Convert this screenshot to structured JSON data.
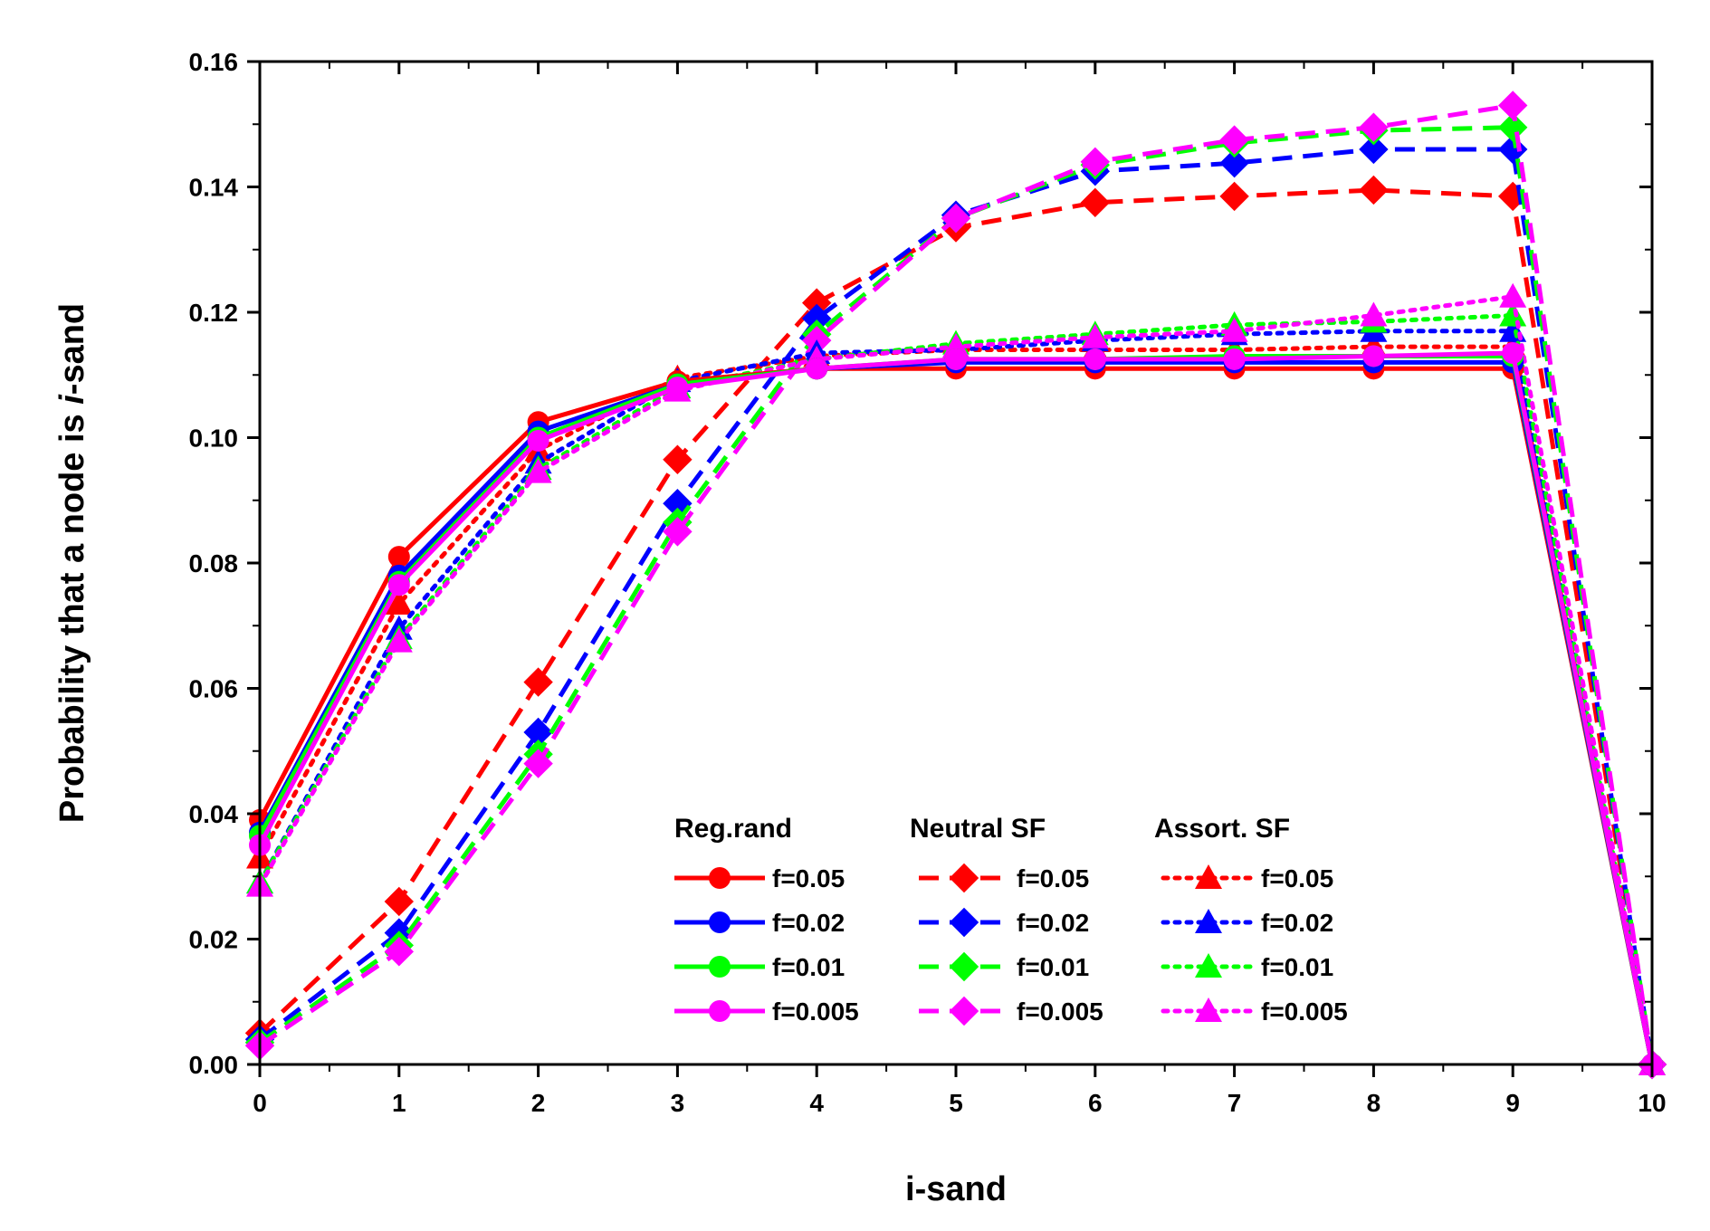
{
  "chart_data": {
    "type": "line",
    "title": "",
    "xlabel": "i-sand",
    "ylabel_prefix": "Probability that a node is ",
    "ylabel_italic": "i",
    "ylabel_suffix": "-sand",
    "xlim": [
      0,
      10
    ],
    "ylim": [
      0,
      0.16
    ],
    "xticks": [
      0,
      1,
      2,
      3,
      4,
      5,
      6,
      7,
      8,
      9,
      10
    ],
    "yticks": [
      0.0,
      0.02,
      0.04,
      0.06,
      0.08,
      0.1,
      0.12,
      0.14,
      0.16
    ],
    "grid": false,
    "legend_location": "bottom-center",
    "legend_groups": [
      "Reg.rand",
      "Neutral SF",
      "Assort. SF"
    ],
    "x": [
      0,
      1,
      2,
      3,
      4,
      5,
      6,
      7,
      8,
      9,
      10
    ],
    "series": [
      {
        "name": "f=0.05",
        "group": "Reg.rand",
        "color": "#ff0000",
        "style": "solid",
        "marker": "circle",
        "values": [
          0.039,
          0.081,
          0.1025,
          0.109,
          0.111,
          0.111,
          0.111,
          0.111,
          0.111,
          0.111,
          0.0
        ]
      },
      {
        "name": "f=0.02",
        "group": "Reg.rand",
        "color": "#0000ff",
        "style": "solid",
        "marker": "circle",
        "values": [
          0.037,
          0.078,
          0.101,
          0.1085,
          0.111,
          0.112,
          0.112,
          0.112,
          0.112,
          0.112,
          0.0
        ]
      },
      {
        "name": "f=0.01",
        "group": "Reg.rand",
        "color": "#00ff00",
        "style": "solid",
        "marker": "circle",
        "values": [
          0.0365,
          0.077,
          0.1,
          0.1085,
          0.111,
          0.1125,
          0.1125,
          0.113,
          0.113,
          0.113,
          0.0
        ]
      },
      {
        "name": "f=0.005",
        "group": "Reg.rand",
        "color": "#ff00ff",
        "style": "solid",
        "marker": "circle",
        "values": [
          0.035,
          0.0765,
          0.0995,
          0.108,
          0.111,
          0.1125,
          0.1125,
          0.1125,
          0.113,
          0.1135,
          0.0
        ]
      },
      {
        "name": "f=0.05",
        "group": "Neutral SF",
        "color": "#ff0000",
        "style": "dashed",
        "marker": "diamond",
        "values": [
          0.005,
          0.026,
          0.061,
          0.0965,
          0.1215,
          0.1335,
          0.1375,
          0.1385,
          0.1395,
          0.1385,
          0.0
        ]
      },
      {
        "name": "f=0.02",
        "group": "Neutral SF",
        "color": "#0000ff",
        "style": "dashed",
        "marker": "diamond",
        "values": [
          0.004,
          0.021,
          0.053,
          0.0895,
          0.119,
          0.1355,
          0.1425,
          0.1438,
          0.146,
          0.146,
          0.0
        ]
      },
      {
        "name": "f=0.01",
        "group": "Neutral SF",
        "color": "#00ff00",
        "style": "dashed",
        "marker": "diamond",
        "values": [
          0.0035,
          0.019,
          0.0495,
          0.0865,
          0.1165,
          0.135,
          0.1435,
          0.147,
          0.149,
          0.1495,
          0.0
        ]
      },
      {
        "name": "f=0.005",
        "group": "Neutral SF",
        "color": "#ff00ff",
        "style": "dashed",
        "marker": "diamond",
        "values": [
          0.003,
          0.018,
          0.048,
          0.085,
          0.1155,
          0.135,
          0.144,
          0.1475,
          0.1495,
          0.153,
          0.0
        ]
      },
      {
        "name": "f=0.05",
        "group": "Assort. SF",
        "color": "#ff0000",
        "style": "dotted",
        "marker": "triangle",
        "values": [
          0.033,
          0.0735,
          0.098,
          0.1095,
          0.113,
          0.114,
          0.114,
          0.114,
          0.1145,
          0.1145,
          0.0
        ]
      },
      {
        "name": "f=0.02",
        "group": "Assort. SF",
        "color": "#0000ff",
        "style": "dotted",
        "marker": "triangle",
        "values": [
          0.029,
          0.0695,
          0.096,
          0.109,
          0.1135,
          0.114,
          0.1155,
          0.1165,
          0.117,
          0.117,
          0.0
        ]
      },
      {
        "name": "f=0.01",
        "group": "Assort. SF",
        "color": "#00ff00",
        "style": "dotted",
        "marker": "triangle",
        "values": [
          0.029,
          0.068,
          0.095,
          0.108,
          0.1125,
          0.115,
          0.1165,
          0.118,
          0.1185,
          0.1195,
          0.0
        ]
      },
      {
        "name": "f=0.005",
        "group": "Assort. SF",
        "color": "#ff00ff",
        "style": "dotted",
        "marker": "triangle",
        "values": [
          0.0285,
          0.0675,
          0.0945,
          0.1075,
          0.1125,
          0.1145,
          0.116,
          0.117,
          0.1195,
          0.1225,
          0.0
        ]
      }
    ]
  }
}
